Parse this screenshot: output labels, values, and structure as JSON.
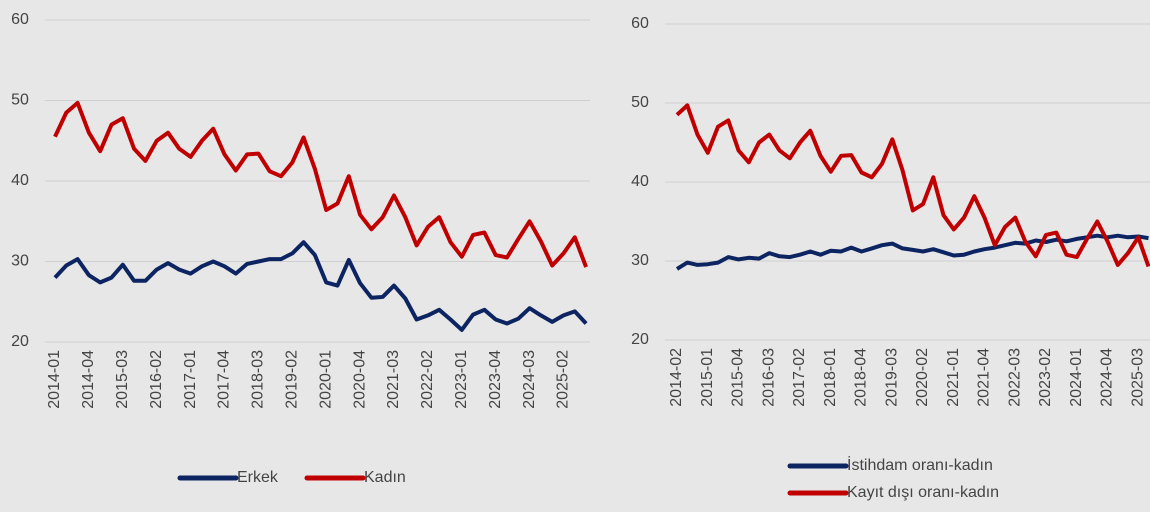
{
  "chart_data": [
    {
      "type": "line",
      "categories": [
        "2014-01",
        null,
        null,
        "2014-04",
        null,
        null,
        "2015-03",
        null,
        null,
        "2016-02",
        null,
        null,
        "2017-01",
        null,
        null,
        "2017-04",
        null,
        null,
        "2018-03",
        null,
        null,
        "2019-02",
        null,
        null,
        "2020-01",
        null,
        null,
        "2020-04",
        null,
        null,
        "2021-03",
        null,
        null,
        "2022-02",
        null,
        null,
        "2023-01",
        null,
        null,
        "2023-04",
        null,
        null,
        "2024-03",
        null,
        null,
        "2025-02",
        null,
        null
      ],
      "series": [
        {
          "name": "Erkek",
          "color": "#0c2461",
          "values": [
            28,
            29.5,
            30.3,
            28.3,
            27.4,
            28,
            29.6,
            27.6,
            27.6,
            29,
            29.8,
            29,
            28.5,
            29.4,
            30,
            29.4,
            28.5,
            29.7,
            30,
            30.3,
            30.3,
            31,
            32.4,
            30.8,
            27.4,
            27,
            30.2,
            27.3,
            25.5,
            25.6,
            27,
            25.4,
            22.8,
            23.3,
            24,
            22.8,
            21.5,
            23.4,
            24,
            22.8,
            22.3,
            22.9,
            24.2,
            23.3,
            22.5,
            23.3,
            23.8,
            22.3
          ]
        },
        {
          "name": "Kadın",
          "color": "#c00000",
          "values": [
            45.5,
            48.5,
            49.7,
            46,
            43.7,
            47,
            47.8,
            44,
            42.5,
            45,
            46,
            44,
            43,
            45,
            46.5,
            43.3,
            41.3,
            43.3,
            43.4,
            41.2,
            40.6,
            42.3,
            45.4,
            41.5,
            36.4,
            37.2,
            40.6,
            35.8,
            34,
            35.5,
            38.2,
            35.5,
            32,
            34.3,
            35.5,
            32.4,
            30.6,
            33.3,
            33.6,
            30.8,
            30.5,
            32.8,
            35,
            32.5,
            29.5,
            31,
            33,
            29.3
          ]
        }
      ],
      "ylim": [
        20,
        60
      ],
      "yticks": [
        20,
        30,
        40,
        50,
        60
      ],
      "grid": true,
      "legend": "bottom"
    },
    {
      "type": "line",
      "categories": [
        "2014-02",
        null,
        null,
        "2015-01",
        null,
        null,
        "2015-04",
        null,
        null,
        "2016-03",
        null,
        null,
        "2017-02",
        null,
        null,
        "2018-01",
        null,
        null,
        "2018-04",
        null,
        null,
        "2019-03",
        null,
        null,
        "2020-02",
        null,
        null,
        "2021-01",
        null,
        null,
        "2021-04",
        null,
        null,
        "2022-03",
        null,
        null,
        "2023-02",
        null,
        null,
        "2024-01",
        null,
        null,
        "2024-04",
        null,
        null,
        "2025-03",
        null
      ],
      "series": [
        {
          "name": "İstihdam oranı-kadın",
          "color": "#0c2461",
          "values": [
            29,
            29.8,
            29.5,
            29.6,
            29.8,
            30.5,
            30.2,
            30.4,
            30.3,
            31,
            30.6,
            30.5,
            30.8,
            31.2,
            30.8,
            31.3,
            31.2,
            31.7,
            31.2,
            31.6,
            32,
            32.2,
            31.6,
            31.4,
            31.2,
            31.5,
            31.1,
            30.7,
            30.8,
            31.2,
            31.5,
            31.7,
            32,
            32.3,
            32.2,
            32.6,
            32.4,
            32.7,
            32.5,
            32.8,
            33,
            33.2,
            33,
            33.2,
            33,
            33.1,
            32.9
          ]
        },
        {
          "name": "Kayıt dışı oranı-kadın",
          "color": "#c00000",
          "values": [
            48.5,
            49.7,
            46,
            43.7,
            47,
            47.8,
            44,
            42.5,
            45,
            46,
            44,
            43,
            45,
            46.5,
            43.3,
            41.3,
            43.3,
            43.4,
            41.2,
            40.6,
            42.3,
            45.4,
            41.5,
            36.4,
            37.2,
            40.6,
            35.8,
            34,
            35.5,
            38.2,
            35.5,
            32,
            34.3,
            35.5,
            32.4,
            30.6,
            33.3,
            33.6,
            30.8,
            30.5,
            32.8,
            35,
            32.5,
            29.5,
            31,
            33,
            29.3
          ]
        }
      ],
      "ylim": [
        20,
        60
      ],
      "yticks": [
        20,
        30,
        40,
        50,
        60
      ],
      "grid": true,
      "legend": "bottom"
    }
  ]
}
